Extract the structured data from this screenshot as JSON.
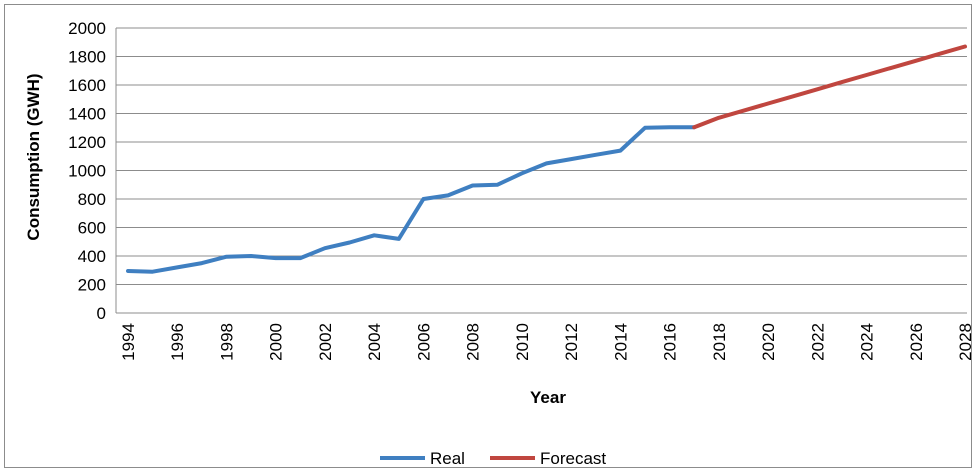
{
  "chart_data": {
    "type": "line",
    "xlabel": "Year",
    "ylabel": "Consumption (GWH)",
    "ylim": [
      0,
      2000
    ],
    "y_ticks": [
      "0",
      "200",
      "400",
      "600",
      "800",
      "1000",
      "1200",
      "1400",
      "1600",
      "1800",
      "2000"
    ],
    "x_range": [
      1994,
      2028
    ],
    "x_ticks": [
      "1994",
      "1996",
      "1998",
      "2000",
      "2002",
      "2004",
      "2006",
      "2008",
      "2010",
      "2012",
      "2014",
      "2016",
      "2018",
      "2020",
      "2022",
      "2024",
      "2026",
      "2028"
    ],
    "grid": "horizontal",
    "legend_position": "bottom",
    "series": [
      {
        "name": "Real",
        "color": "#3f7fc1",
        "x": [
          1994,
          1995,
          1996,
          1997,
          1998,
          1999,
          2000,
          2001,
          2002,
          2003,
          2004,
          2005,
          2006,
          2007,
          2008,
          2009,
          2010,
          2011,
          2012,
          2013,
          2014,
          2015,
          2016,
          2017
        ],
        "y": [
          295,
          290,
          320,
          350,
          395,
          400,
          385,
          385,
          455,
          495,
          545,
          520,
          800,
          825,
          895,
          900,
          980,
          1050,
          1080,
          1110,
          1140,
          1300,
          1303,
          1303
        ]
      },
      {
        "name": "Forecast",
        "color": "#c0463f",
        "x": [
          2017,
          2018,
          2019,
          2020,
          2021,
          2022,
          2023,
          2024,
          2025,
          2026,
          2027,
          2028
        ],
        "y": [
          1303,
          1370,
          1420,
          1470,
          1520,
          1570,
          1620,
          1670,
          1720,
          1770,
          1820,
          1870
        ]
      }
    ]
  }
}
